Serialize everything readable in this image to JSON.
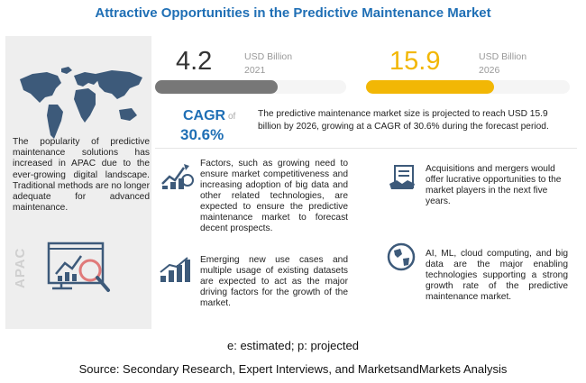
{
  "title": "Attractive Opportunities in the Predictive Maintenance Market",
  "left_panel": {
    "text": "The popularity of predictive maintenance solutions has increased in APAC due to the ever-growing digital landscape. Traditional methods are no longer adequate for advanced maintenance.",
    "region_label": "APAC"
  },
  "metrics": {
    "start": {
      "value": "4.2",
      "unit": "USD Billion",
      "year": "2021"
    },
    "end": {
      "value": "15.9",
      "unit": "USD Billion",
      "year": "2026"
    }
  },
  "cagr": {
    "label": "CAGR",
    "of": "of",
    "value": "30.6%"
  },
  "summary": "The predictive maintenance market size is projected to reach USD 15.9 billion by 2026, growing at a CAGR of 30.6% during the forecast period.",
  "points": [
    {
      "text": "Factors, such as growing need to ensure market competitiveness and increasing adoption of big data and other related technologies, are expected to ensure the predictive maintenance market to forecast decent prospects."
    },
    {
      "text": "Emerging new use cases and multiple usage of existing datasets are expected to act as the major driving factors for the growth of the market."
    },
    {
      "text": "Acquisitions and mergers would offer lucrative opportunities to the market players in the next five years."
    },
    {
      "text": "AI, ML, cloud computing, and big data are the major enabling technologies supporting a strong growth rate of the predictive maintenance market."
    }
  ],
  "footnote": "e: estimated; p: projected",
  "source": "Source: Secondary Research, Expert Interviews, and MarketsandMarkets Analysis",
  "colors": {
    "accent": "#1f6fb5",
    "current_bar": "#777777",
    "future_bar": "#f2b705"
  },
  "chart_data": {
    "type": "bar",
    "categories": [
      "2021",
      "2026"
    ],
    "values": [
      4.2,
      15.9
    ],
    "ylabel": "USD Billion"
  }
}
